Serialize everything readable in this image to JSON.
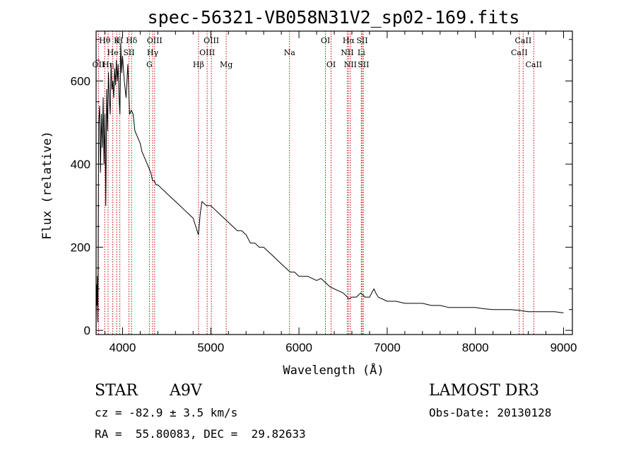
{
  "chart_data": {
    "type": "line",
    "title": "spec-56321-VB058N31V2_sp02-169.fits",
    "xlabel": "Wavelength (Å)",
    "ylabel": "Flux (relative)",
    "xlim": [
      3700,
      9100
    ],
    "ylim": [
      -10,
      720
    ],
    "xticks": [
      4000,
      5000,
      6000,
      7000,
      8000,
      9000
    ],
    "yticks": [
      0,
      200,
      400,
      600
    ],
    "series": [
      {
        "name": "spectrum",
        "x": [
          3700,
          3705,
          3710,
          3715,
          3720,
          3730,
          3740,
          3750,
          3760,
          3770,
          3780,
          3790,
          3800,
          3810,
          3820,
          3830,
          3840,
          3850,
          3860,
          3870,
          3880,
          3890,
          3900,
          3910,
          3920,
          3930,
          3940,
          3950,
          3960,
          3970,
          3980,
          3990,
          4000,
          4020,
          4040,
          4060,
          4080,
          4100,
          4120,
          4140,
          4160,
          4180,
          4200,
          4220,
          4240,
          4260,
          4280,
          4300,
          4320,
          4340,
          4360,
          4380,
          4400,
          4450,
          4500,
          4550,
          4600,
          4650,
          4700,
          4750,
          4800,
          4830,
          4860,
          4880,
          4900,
          4950,
          5000,
          5050,
          5100,
          5150,
          5200,
          5250,
          5300,
          5350,
          5400,
          5450,
          5500,
          5550,
          5600,
          5650,
          5700,
          5750,
          5800,
          5850,
          5900,
          5950,
          6000,
          6050,
          6100,
          6150,
          6200,
          6250,
          6300,
          6350,
          6400,
          6450,
          6500,
          6550,
          6563,
          6600,
          6650,
          6700,
          6750,
          6800,
          6850,
          6870,
          6900,
          6950,
          7000,
          7100,
          7200,
          7300,
          7400,
          7500,
          7600,
          7700,
          7800,
          7900,
          8000,
          8100,
          8200,
          8300,
          8400,
          8500,
          8600,
          8700,
          8800,
          8900,
          9000
        ],
        "y": [
          0,
          110,
          60,
          130,
          20,
          500,
          540,
          380,
          520,
          440,
          560,
          400,
          520,
          300,
          580,
          480,
          620,
          560,
          520,
          640,
          580,
          600,
          560,
          630,
          590,
          650,
          600,
          640,
          560,
          520,
          690,
          620,
          660,
          600,
          560,
          640,
          520,
          530,
          520,
          480,
          470,
          460,
          450,
          430,
          420,
          410,
          400,
          390,
          380,
          360,
          360,
          350,
          350,
          340,
          330,
          320,
          310,
          300,
          290,
          280,
          270,
          250,
          230,
          280,
          310,
          300,
          300,
          290,
          280,
          270,
          260,
          250,
          240,
          240,
          230,
          210,
          210,
          200,
          200,
          190,
          180,
          170,
          160,
          150,
          140,
          140,
          130,
          130,
          130,
          125,
          120,
          125,
          115,
          105,
          100,
          95,
          90,
          80,
          75,
          80,
          80,
          90,
          80,
          80,
          100,
          90,
          80,
          75,
          70,
          70,
          65,
          65,
          65,
          60,
          60,
          55,
          55,
          55,
          55,
          52,
          50,
          50,
          50,
          48,
          45,
          45,
          45,
          45,
          42
        ]
      }
    ],
    "lines": [
      {
        "label": "OII",
        "x": 3727,
        "row": 3
      },
      {
        "label": "Hθ",
        "x": 3798,
        "row": 1
      },
      {
        "label": "Hη",
        "x": 3836,
        "row": 3
      },
      {
        "label": "He",
        "x": 3889,
        "row": 2
      },
      {
        "label": "K",
        "x": 3934,
        "row": 1
      },
      {
        "label": "H",
        "x": 3969,
        "row": 1
      },
      {
        "label": "Hδ",
        "x": 4102,
        "row": 1
      },
      {
        "label": "SII",
        "x": 4072,
        "row": 2
      },
      {
        "label": "OIII",
        "x": 4363,
        "row": 1
      },
      {
        "label": "Hγ",
        "x": 4341,
        "row": 2
      },
      {
        "label": "G",
        "x": 4304,
        "row": 3
      },
      {
        "label": "Hβ",
        "x": 4861,
        "row": 3
      },
      {
        "label": "OIII",
        "x": 4959,
        "row": 2
      },
      {
        "label": "OIII",
        "x": 5007,
        "row": 1
      },
      {
        "label": "Mg",
        "x": 5175,
        "row": 3
      },
      {
        "label": "Na",
        "x": 5893,
        "row": 2
      },
      {
        "label": "OI",
        "x": 6300,
        "row": 1
      },
      {
        "label": "OI",
        "x": 6364,
        "row": 3
      },
      {
        "label": "Hα",
        "x": 6563,
        "row": 1
      },
      {
        "label": "NII",
        "x": 6548,
        "row": 2
      },
      {
        "label": "NII",
        "x": 6583,
        "row": 3
      },
      {
        "label": "SII",
        "x": 6716,
        "row": 1
      },
      {
        "label": "Li",
        "x": 6707,
        "row": 2
      },
      {
        "label": "SII",
        "x": 6731,
        "row": 3
      },
      {
        "label": "CaII",
        "x": 8498,
        "row": 2
      },
      {
        "label": "CaII",
        "x": 8542,
        "row": 1
      },
      {
        "label": "CaII",
        "x": 8662,
        "row": 3
      }
    ]
  },
  "info": {
    "object_class": "STAR",
    "subclass": "A9V",
    "survey": "LAMOST DR3",
    "cz": "cz = -82.9 ± 3.5 km/s",
    "obs_date": "Obs-Date: 20130128",
    "coords": "RA =  55.80083, DEC =  29.82633"
  },
  "colors": {
    "spectrum": "#000000",
    "line_marker": "#cc0000",
    "axes": "#000000"
  }
}
